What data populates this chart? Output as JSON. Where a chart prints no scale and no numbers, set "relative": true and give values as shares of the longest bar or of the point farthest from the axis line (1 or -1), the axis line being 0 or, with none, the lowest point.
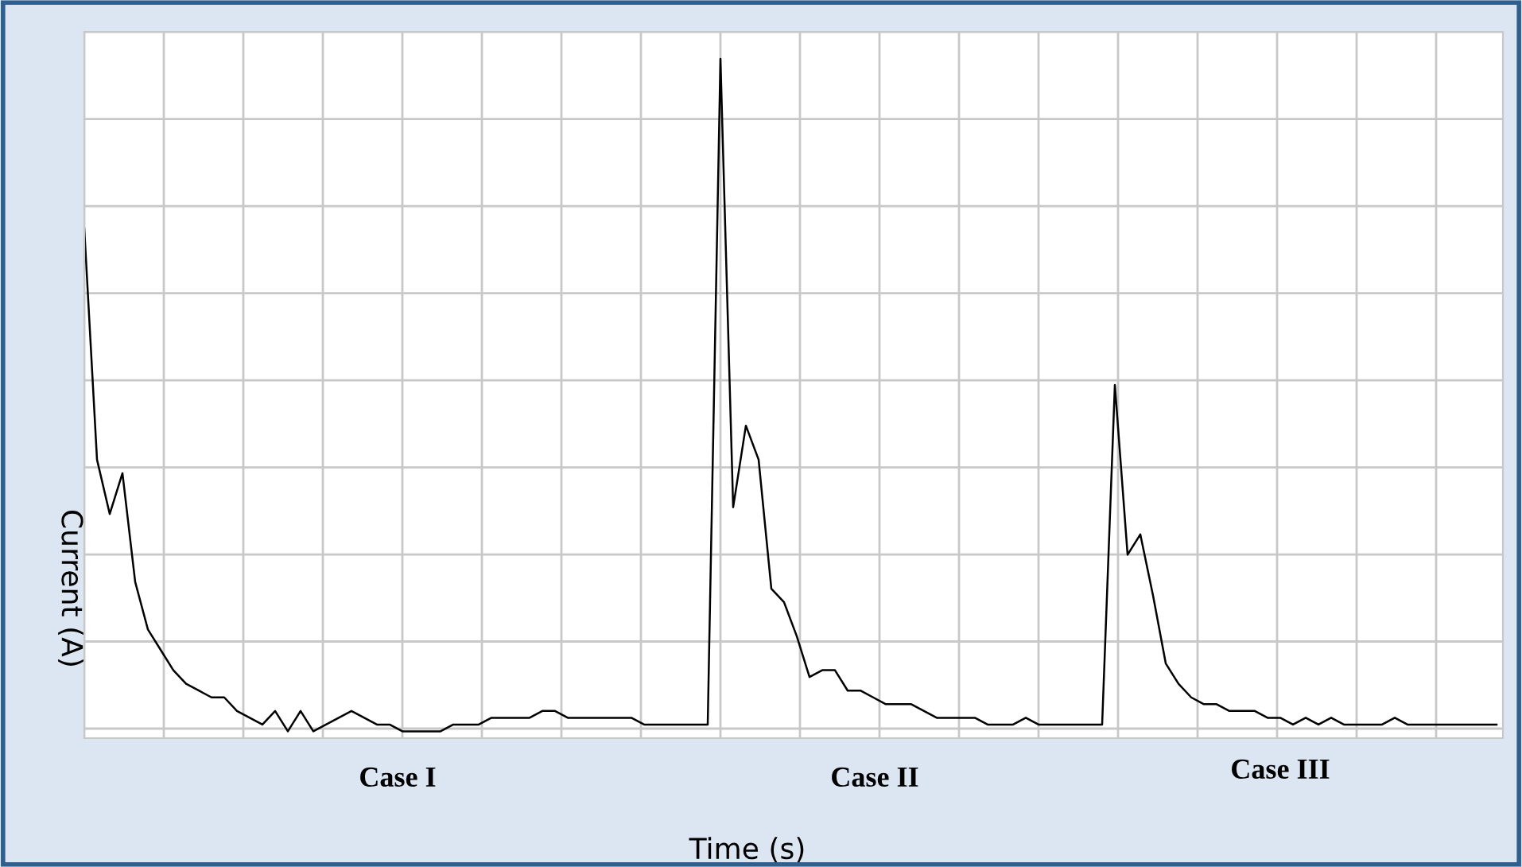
{
  "chart_data": {
    "type": "line",
    "relative": true,
    "xlabel": "Time (s)",
    "ylabel": "Current (A)",
    "annotations": [
      "Case I",
      "Case II",
      "Case III"
    ],
    "grid": true,
    "tick_labels": false,
    "categories": [
      null,
      null,
      null,
      null,
      null,
      null,
      null,
      null,
      null,
      null,
      null,
      null,
      null,
      null,
      null,
      null,
      null,
      null,
      null,
      null,
      null,
      null,
      null,
      null,
      null,
      null,
      null,
      null,
      null,
      null,
      null,
      null,
      null,
      null,
      null,
      null,
      null,
      null,
      null,
      null,
      null,
      null,
      null,
      null,
      null,
      null,
      null,
      null,
      null,
      null,
      null,
      null,
      null,
      null,
      null,
      null,
      null,
      null,
      null,
      null,
      null,
      null,
      null,
      null,
      null,
      null,
      null,
      null,
      null,
      null,
      null,
      null,
      null,
      null,
      null,
      null,
      null,
      null,
      null,
      null,
      null,
      null,
      null,
      null,
      null,
      null,
      null,
      null,
      null,
      null,
      null,
      null,
      null,
      null,
      null,
      null,
      null,
      null,
      null,
      null,
      null,
      null,
      null,
      null,
      null,
      null,
      null,
      null,
      null,
      null,
      null,
      null
    ],
    "series": [
      {
        "color": "#000000",
        "values": [
          0.75,
          0.41,
          0.33,
          0.39,
          0.23,
          0.16,
          0.13,
          0.1,
          0.08,
          0.07,
          0.06,
          0.06,
          0.04,
          0.03,
          0.02,
          0.04,
          0.01,
          0.04,
          0.01,
          0.02,
          0.03,
          0.04,
          0.03,
          0.02,
          0.02,
          0.01,
          0.01,
          0.01,
          0.01,
          0.02,
          0.02,
          0.02,
          0.03,
          0.03,
          0.03,
          0.03,
          0.04,
          0.04,
          0.03,
          0.03,
          0.03,
          0.03,
          0.03,
          0.03,
          0.02,
          0.02,
          0.02,
          0.02,
          0.02,
          0.02,
          1.0,
          0.34,
          0.46,
          0.41,
          0.22,
          0.2,
          0.15,
          0.09,
          0.1,
          0.1,
          0.07,
          0.07,
          0.06,
          0.05,
          0.05,
          0.05,
          0.04,
          0.03,
          0.03,
          0.03,
          0.03,
          0.02,
          0.02,
          0.02,
          0.03,
          0.02,
          0.02,
          0.02,
          0.02,
          0.02,
          0.02,
          0.52,
          0.27,
          0.3,
          0.21,
          0.11,
          0.08,
          0.06,
          0.05,
          0.05,
          0.04,
          0.04,
          0.04,
          0.03,
          0.03,
          0.02,
          0.03,
          0.02,
          0.03,
          0.02,
          0.02,
          0.02,
          0.02,
          0.03,
          0.02,
          0.02,
          0.02,
          0.02,
          0.02,
          0.02,
          0.02,
          0.02
        ]
      }
    ]
  }
}
